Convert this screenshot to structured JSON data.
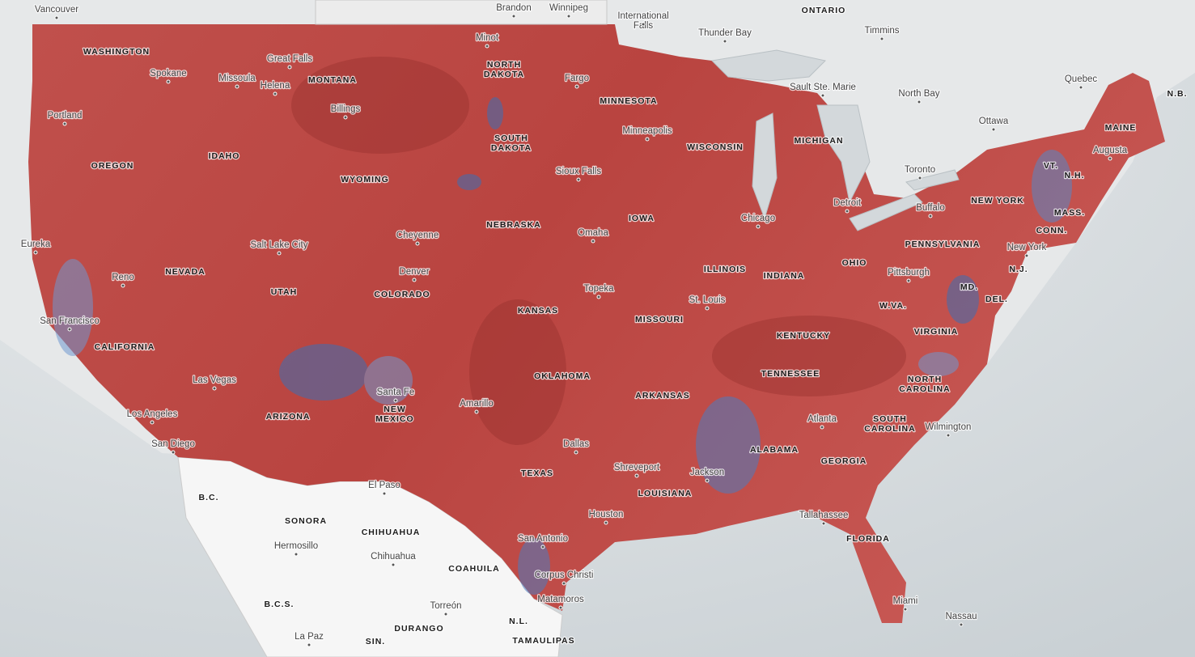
{
  "regions": [
    [
      "ONTARIO"
    ],
    [
      "N.B."
    ],
    [
      "B.C."
    ],
    [
      "SONORA"
    ],
    [
      "CHIHUAHUA"
    ],
    [
      "COAHUILA"
    ],
    [
      "B.C.S."
    ],
    [
      "DURANGO"
    ],
    [
      "N.L."
    ],
    [
      "SIN."
    ],
    [
      "TAMAULIPAS"
    ]
  ],
  "states": [
    [
      "WASHINGTON"
    ],
    [
      "MONTANA"
    ],
    [
      "NORTH",
      "DAKOTA"
    ],
    [
      "MINNESOTA"
    ],
    [
      "SOUTH",
      "DAKOTA"
    ],
    [
      "IDAHO"
    ],
    [
      "OREGON"
    ],
    [
      "WYOMING"
    ],
    [
      "WISCONSIN"
    ],
    [
      "MICHIGAN"
    ],
    [
      "MAINE"
    ],
    [
      "VT."
    ],
    [
      "N.H."
    ],
    [
      "NEW YORK"
    ],
    [
      "IOWA"
    ],
    [
      "MASS."
    ],
    [
      "NEBRASKA"
    ],
    [
      "CONN."
    ],
    [
      "PENNSYLVANIA"
    ],
    [
      "NEVADA"
    ],
    [
      "ILLINOIS"
    ],
    [
      "N.J."
    ],
    [
      "OHIO"
    ],
    [
      "INDIANA"
    ],
    [
      "UTAH"
    ],
    [
      "COLORADO"
    ],
    [
      "MD."
    ],
    [
      "DEL."
    ],
    [
      "W.VA."
    ],
    [
      "KANSAS"
    ],
    [
      "MISSOURI"
    ],
    [
      "VIRGINIA"
    ],
    [
      "KENTUCKY"
    ],
    [
      "CALIFORNIA"
    ],
    [
      "TENNESSEE"
    ],
    [
      "OKLAHOMA"
    ],
    [
      "NORTH",
      "CAROLINA"
    ],
    [
      "ARKANSAS"
    ],
    [
      "NEW",
      "MEXICO"
    ],
    [
      "ARIZONA"
    ],
    [
      "SOUTH",
      "CAROLINA"
    ],
    [
      "ALABAMA"
    ],
    [
      "GEORGIA"
    ],
    [
      "TEXAS"
    ],
    [
      "LOUISIANA"
    ],
    [
      "FLORIDA"
    ]
  ],
  "cities": [
    [
      "Vancouver"
    ],
    [
      "Brandon"
    ],
    [
      "Winnipeg"
    ],
    [
      "International",
      "Falls"
    ],
    [
      "Thunder Bay"
    ],
    [
      "Timmins"
    ],
    [
      "Minot"
    ],
    [
      "Great Falls"
    ],
    [
      "Spokane"
    ],
    [
      "Missoula"
    ],
    [
      "Helena"
    ],
    [
      "Billings"
    ],
    [
      "Fargo"
    ],
    [
      "Sault Ste. Marie"
    ],
    [
      "North Bay"
    ],
    [
      "Quebec"
    ],
    [
      "Ottawa"
    ],
    [
      "Portland"
    ],
    [
      "Minneapolis"
    ],
    [
      "Sioux Falls"
    ],
    [
      "Toronto"
    ],
    [
      "Augusta"
    ],
    [
      "Buffalo"
    ],
    [
      "Chicago"
    ],
    [
      "Detroit"
    ],
    [
      "Omaha"
    ],
    [
      "Cheyenne"
    ],
    [
      "Eureka"
    ],
    [
      "Salt Lake City"
    ],
    [
      "New York"
    ],
    [
      "Pittsburgh"
    ],
    [
      "Denver"
    ],
    [
      "Reno"
    ],
    [
      "Topeka"
    ],
    [
      "St. Louis"
    ],
    [
      "San Francisco"
    ],
    [
      "Las Vegas"
    ],
    [
      "Santa Fe"
    ],
    [
      "Amarillo"
    ],
    [
      "Los Angeles"
    ],
    [
      "Dallas"
    ],
    [
      "Atlanta"
    ],
    [
      "Wilmington"
    ],
    [
      "San Diego"
    ],
    [
      "Shreveport"
    ],
    [
      "Jackson"
    ],
    [
      "El Paso"
    ],
    [
      "Houston"
    ],
    [
      "Tallahassee"
    ],
    [
      "San Antonio"
    ],
    [
      "Hermosillo"
    ],
    [
      "Chihuahua"
    ],
    [
      "Corpus Christi"
    ],
    [
      "Matamoros"
    ],
    [
      "Torreón"
    ],
    [
      "Miami"
    ],
    [
      "Nassau"
    ],
    [
      "La Paz"
    ]
  ]
}
